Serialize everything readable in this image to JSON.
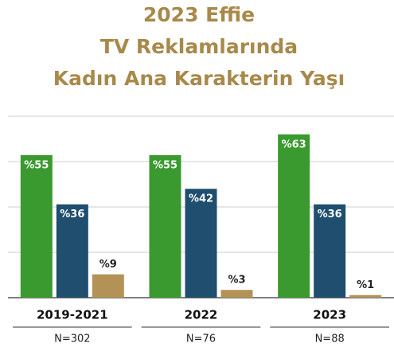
{
  "chart_data": {
    "type": "bar",
    "title": [
      "2023 Effie",
      "TV Reklamlarında",
      "Kadın Ana Karakterin Yaşı"
    ],
    "categories": [
      "2019-2021",
      "2022",
      "2023"
    ],
    "annotations": [
      "N=302",
      "N=76",
      "N=88"
    ],
    "series": [
      {
        "color": "#3a9a2f",
        "values": [
          55,
          55,
          63
        ],
        "value_labels": [
          "%55",
          "%55",
          "%63"
        ]
      },
      {
        "color": "#1f4e6e",
        "values": [
          36,
          42,
          36
        ],
        "value_labels": [
          "%36",
          "%42",
          "%36"
        ]
      },
      {
        "color": "#b39355",
        "values": [
          9,
          3,
          1
        ],
        "value_labels": [
          "%9",
          "%3",
          "%1"
        ]
      }
    ],
    "ylim": [
      0,
      70
    ],
    "yticks": [
      0,
      17.5,
      35,
      52.5,
      70
    ],
    "grid": true
  }
}
